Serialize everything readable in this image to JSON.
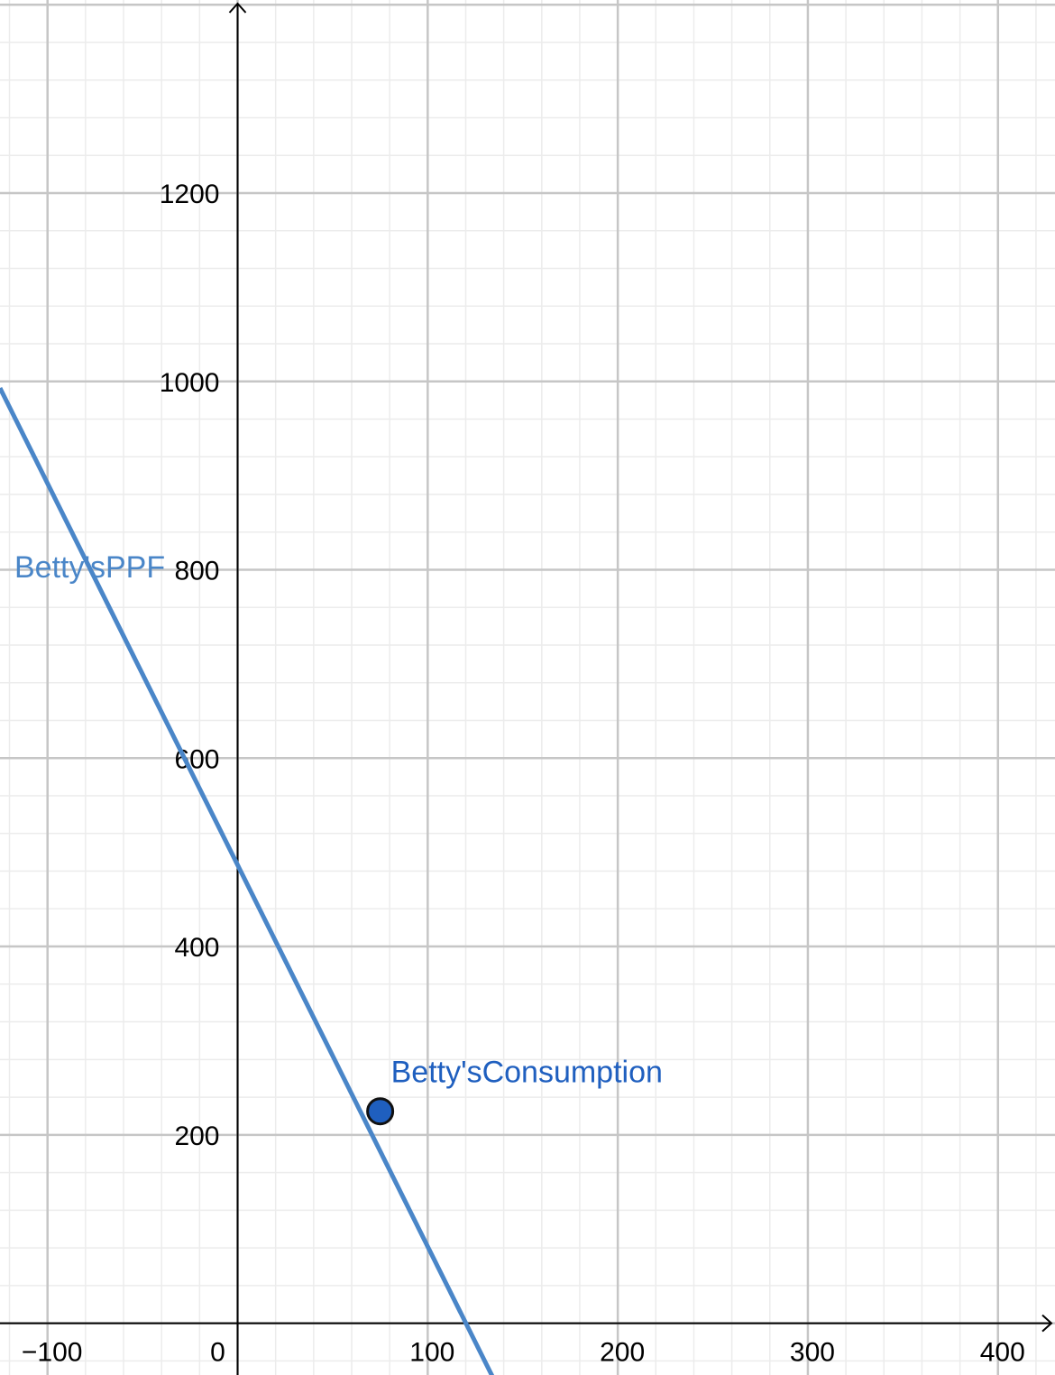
{
  "chart_data": {
    "type": "line",
    "grid": true,
    "xlim": [
      -125,
      430
    ],
    "ylim": [
      -55,
      1405
    ],
    "x_ticks": [
      -100,
      0,
      100,
      200,
      300,
      400
    ],
    "y_ticks": [
      200,
      400,
      600,
      800,
      1000,
      1200
    ],
    "x_tick_labels": [
      "−100",
      "0",
      "100",
      "200",
      "300",
      "400"
    ],
    "y_tick_labels": [
      "200",
      "400",
      "600",
      "800",
      "1000",
      "1200"
    ],
    "series": [
      {
        "name": "Betty'sPPF",
        "color": "#4a86c8",
        "x": [
          -125,
          146
        ],
        "y": [
          993,
          -105
        ]
      }
    ],
    "points": [
      {
        "name": "Betty'sConsumption",
        "x": 75,
        "y": 225,
        "color": "#1f5fbf"
      }
    ]
  }
}
